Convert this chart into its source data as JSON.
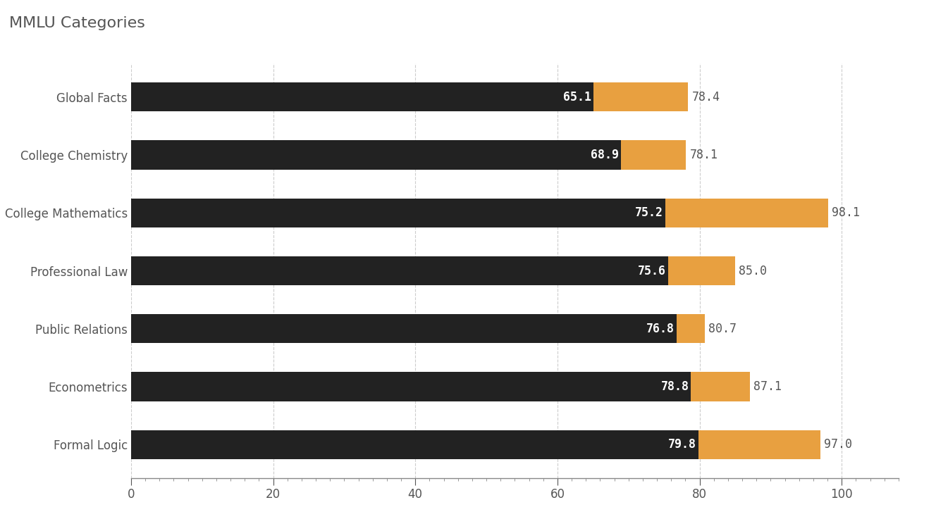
{
  "title": "MMLU Categories",
  "categories": [
    "Global Facts",
    "College Chemistry",
    "College Mathematics",
    "Professional Law",
    "Public Relations",
    "Econometrics",
    "Formal Logic"
  ],
  "baseline": [
    65.1,
    68.9,
    75.2,
    75.6,
    76.8,
    78.8,
    79.8
  ],
  "enhanced": [
    78.4,
    78.1,
    98.1,
    85.0,
    80.7,
    87.1,
    97.0
  ],
  "bar_color_baseline": "#222222",
  "bar_color_enhanced": "#e8a040",
  "background_color": "#ffffff",
  "title_fontsize": 16,
  "tick_fontsize": 12,
  "label_fontsize": 12,
  "xlim": [
    0,
    108
  ],
  "xticks": [
    0,
    20,
    40,
    60,
    80,
    100
  ]
}
